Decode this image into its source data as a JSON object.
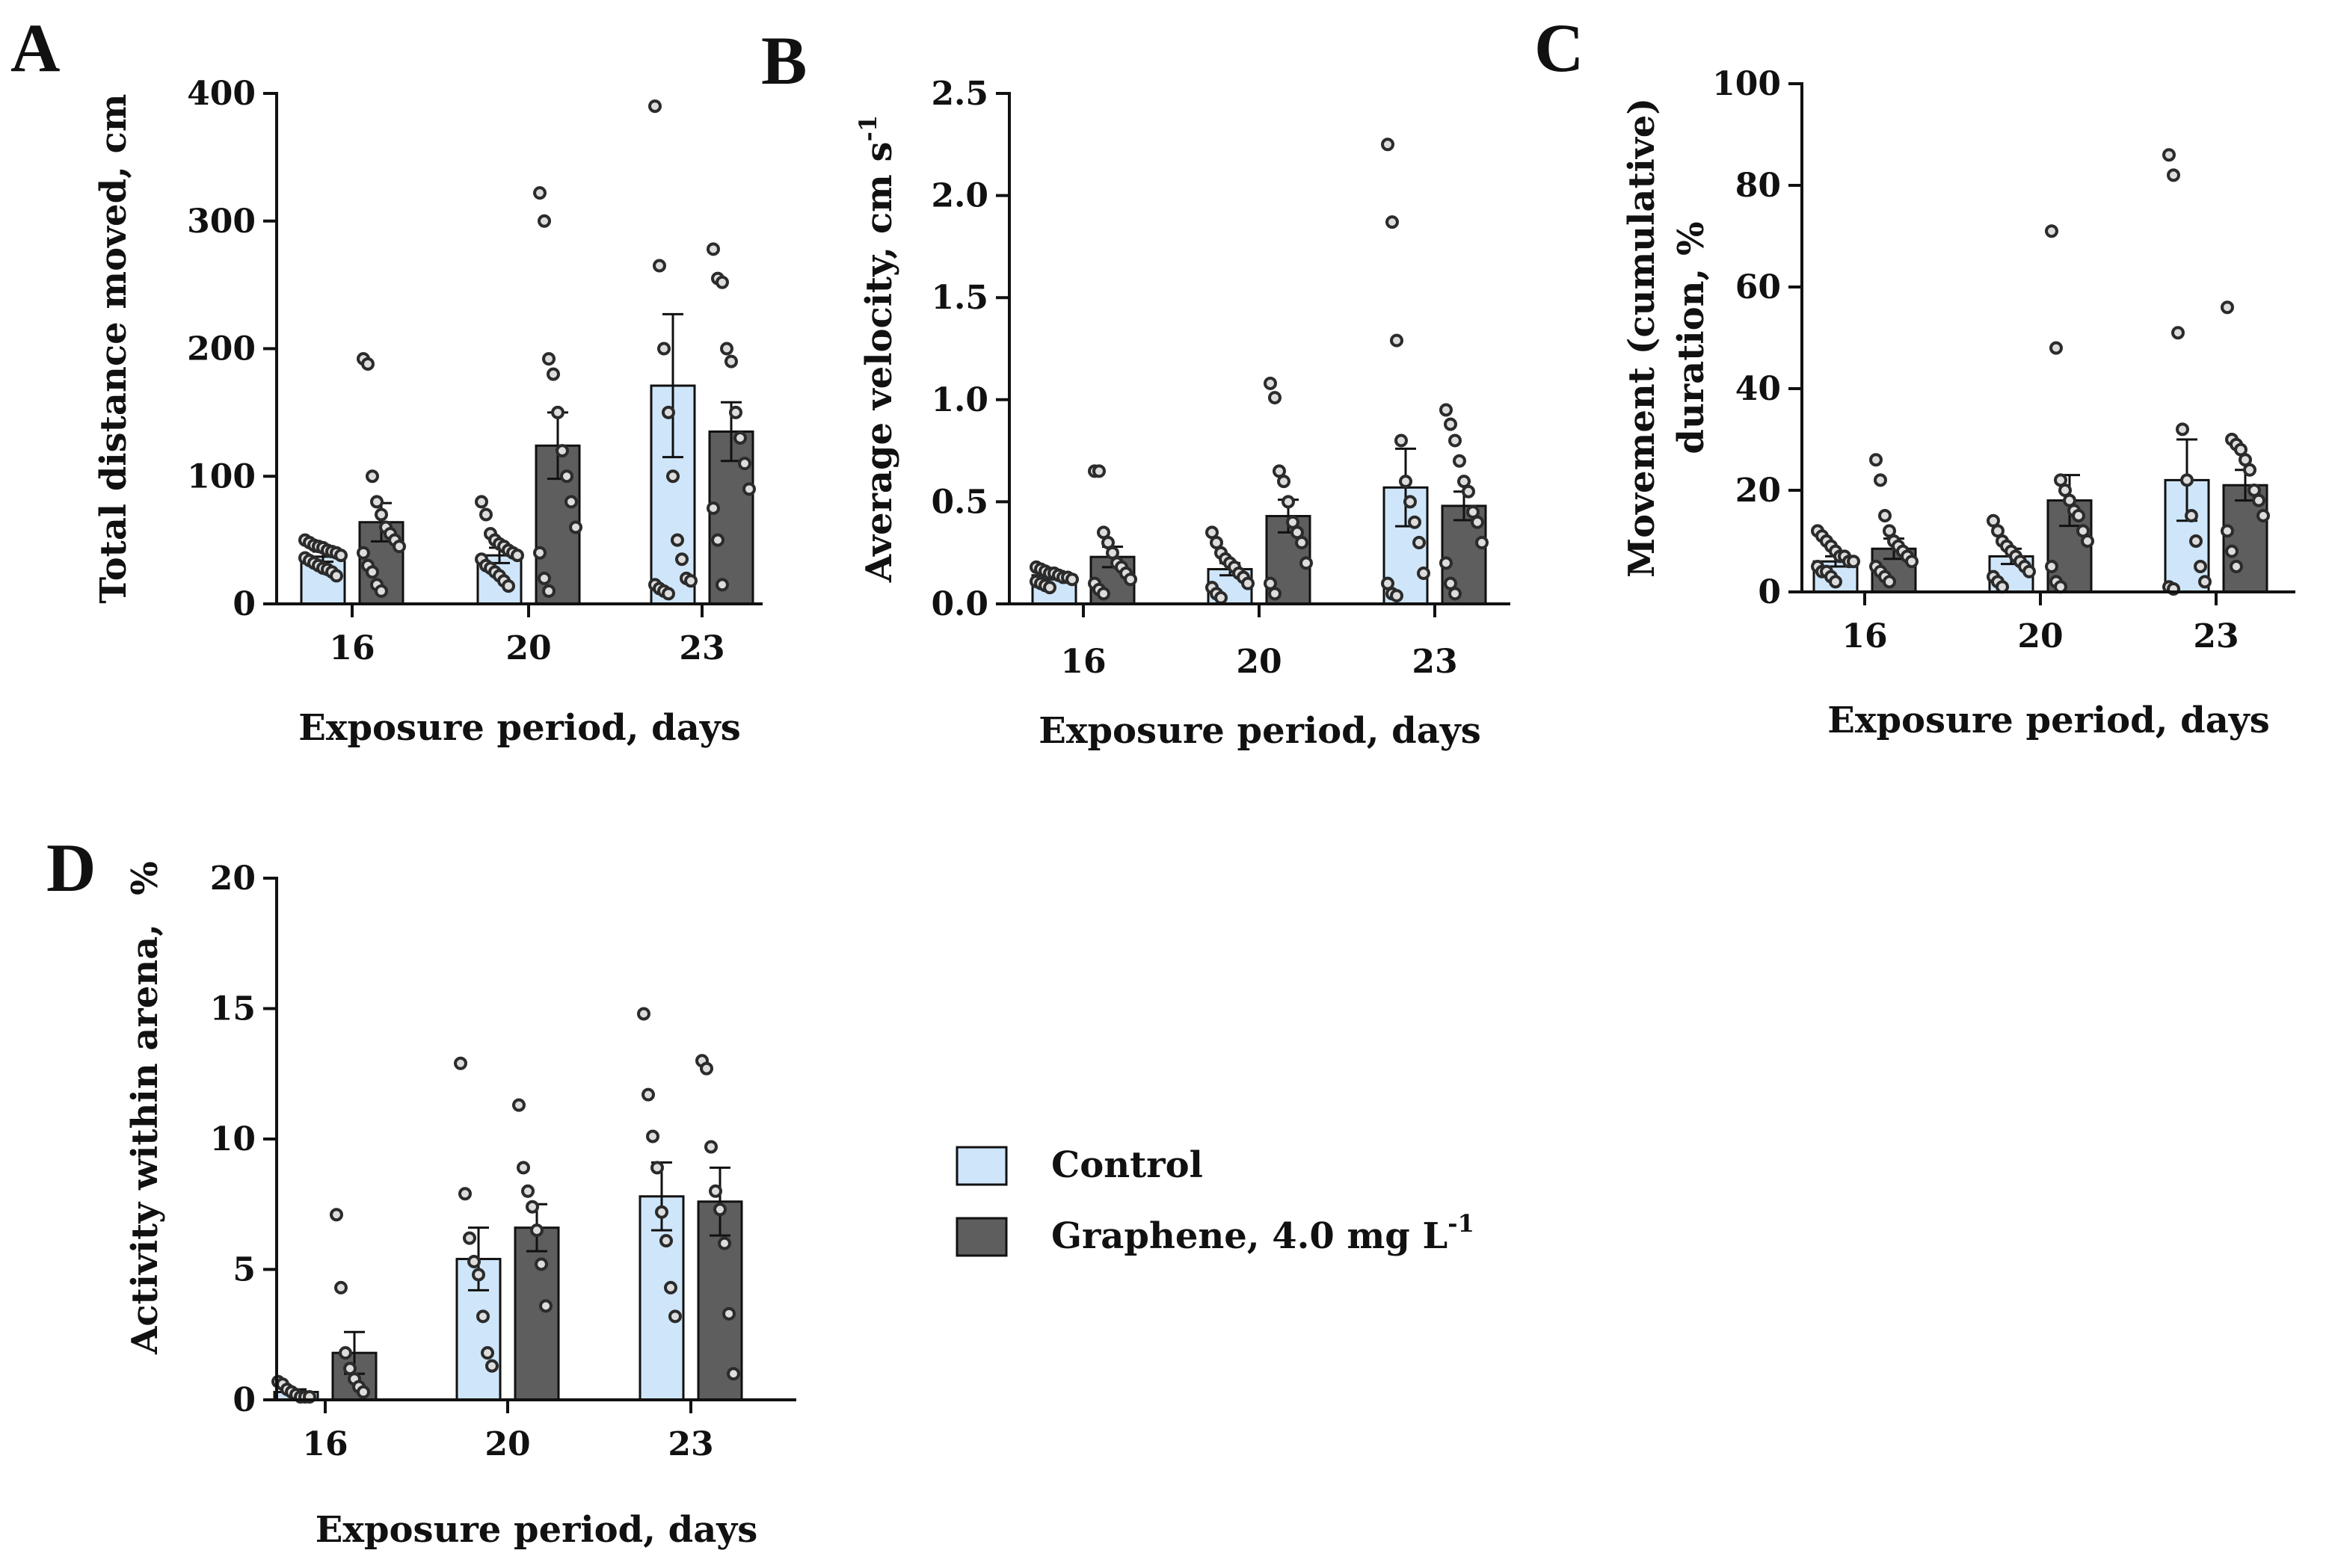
{
  "colors": {
    "control": "#cfe6fa",
    "graphene": "#5e5e5e",
    "axis": "#111111",
    "point": "#2b2b2b"
  },
  "legend": [
    {
      "key": "control",
      "label": "Control",
      "sup": ""
    },
    {
      "key": "graphene",
      "label": "Graphene, 4.0 mg  L",
      "sup": "-1"
    }
  ],
  "chart_data": [
    {
      "panel": "A",
      "type": "bar",
      "categories": [
        "16",
        "20",
        "23"
      ],
      "xlabel": "Exposure period, days",
      "ylabel": "Total distance moved, cm",
      "ylabel_sup": "",
      "ylim": [
        0,
        400
      ],
      "yticks": [
        "0",
        "100",
        "200",
        "300",
        "400"
      ],
      "series": [
        {
          "name": "Control",
          "key": "control",
          "values": [
            37,
            38,
            171
          ],
          "sem": [
            4,
            6,
            56
          ],
          "points": [
            [
              50,
              48,
              46,
              45,
              44,
              42,
              41,
              40,
              38,
              36,
              34,
              32,
              30,
              28,
              27,
              25,
              22
            ],
            [
              80,
              70,
              55,
              50,
              47,
              45,
              42,
              40,
              38,
              35,
              30,
              28,
              25,
              22,
              18,
              14
            ],
            [
              390,
              265,
              200,
              150,
              100,
              50,
              35,
              20,
              18,
              15,
              12,
              10,
              8
            ]
          ]
        },
        {
          "name": "Graphene, 4.0 mg L-1",
          "key": "graphene",
          "values": [
            64,
            124,
            135
          ],
          "sem": [
            15,
            26,
            23
          ],
          "points": [
            [
              192,
              188,
              100,
              80,
              70,
              60,
              55,
              50,
              45,
              40,
              30,
              25,
              15,
              10
            ],
            [
              322,
              300,
              192,
              180,
              150,
              120,
              100,
              80,
              60,
              40,
              20,
              10
            ],
            [
              278,
              255,
              252,
              200,
              190,
              150,
              130,
              110,
              90,
              75,
              50,
              15
            ]
          ]
        }
      ]
    },
    {
      "panel": "B",
      "type": "bar",
      "categories": [
        "16",
        "20",
        "23"
      ],
      "xlabel": "Exposure period, days",
      "ylabel": "Average velocity, cm s",
      "ylabel_sup": "-1",
      "ylim": [
        0,
        2.5
      ],
      "yticks": [
        "0.0",
        "0.5",
        "1.0",
        "1.5",
        "2.0",
        "2.5"
      ],
      "series": [
        {
          "name": "Control",
          "key": "control",
          "values": [
            0.14,
            0.17,
            0.57
          ],
          "sem": [
            0.02,
            0.03,
            0.19
          ],
          "points": [
            [
              0.18,
              0.17,
              0.16,
              0.15,
              0.15,
              0.14,
              0.13,
              0.13,
              0.12,
              0.11,
              0.1,
              0.09,
              0.08
            ],
            [
              0.35,
              0.3,
              0.25,
              0.22,
              0.2,
              0.18,
              0.15,
              0.13,
              0.1,
              0.08,
              0.05,
              0.03
            ],
            [
              2.25,
              1.87,
              1.29,
              0.8,
              0.6,
              0.5,
              0.4,
              0.3,
              0.15,
              0.1,
              0.05,
              0.04
            ]
          ]
        },
        {
          "name": "Graphene, 4.0 mg L-1",
          "key": "graphene",
          "values": [
            0.23,
            0.43,
            0.48
          ],
          "sem": [
            0.05,
            0.08,
            0.07
          ],
          "points": [
            [
              0.65,
              0.65,
              0.35,
              0.3,
              0.25,
              0.2,
              0.18,
              0.15,
              0.12,
              0.1,
              0.07,
              0.05
            ],
            [
              1.08,
              1.01,
              0.65,
              0.6,
              0.5,
              0.4,
              0.35,
              0.3,
              0.2,
              0.1,
              0.05
            ],
            [
              0.95,
              0.88,
              0.8,
              0.7,
              0.6,
              0.55,
              0.45,
              0.4,
              0.3,
              0.2,
              0.1,
              0.05
            ]
          ]
        }
      ]
    },
    {
      "panel": "C",
      "type": "bar",
      "categories": [
        "16",
        "20",
        "23"
      ],
      "xlabel": "Exposure period, days",
      "ylabel": "Movement (cumulative)",
      "ylabel2": "duration, %",
      "ylabel_sup": "",
      "ylim": [
        0,
        100
      ],
      "yticks": [
        "0",
        "20",
        "40",
        "60",
        "80",
        "100"
      ],
      "series": [
        {
          "name": "Control",
          "key": "control",
          "values": [
            6,
            7,
            22
          ],
          "sem": [
            1,
            1.5,
            8
          ],
          "points": [
            [
              12,
              11,
              10,
              9,
              8,
              7,
              7,
              6,
              6,
              5,
              4,
              4,
              3,
              2
            ],
            [
              14,
              12,
              10,
              9,
              8,
              7,
              6,
              5,
              4,
              3,
              2,
              1
            ],
            [
              86,
              82,
              51,
              32,
              22,
              15,
              10,
              5,
              2,
              1,
              0.5
            ]
          ]
        },
        {
          "name": "Graphene, 4.0 mg L-1",
          "key": "graphene",
          "values": [
            8.5,
            18,
            21
          ],
          "sem": [
            2,
            5,
            3
          ],
          "points": [
            [
              26,
              22,
              15,
              12,
              10,
              9,
              8,
              7,
              6,
              5,
              4,
              3,
              2
            ],
            [
              71,
              48,
              22,
              20,
              18,
              16,
              15,
              12,
              10,
              5,
              2,
              1
            ],
            [
              56,
              30,
              29,
              28,
              26,
              24,
              20,
              18,
              15,
              12,
              8,
              5
            ]
          ]
        }
      ]
    },
    {
      "panel": "D",
      "type": "bar",
      "categories": [
        "16",
        "20",
        "23"
      ],
      "xlabel": "Exposure period, days",
      "ylabel": "Activity within arena,",
      "ylabel2": "%",
      "ylabel_sup": "",
      "ylim": [
        0,
        20
      ],
      "yticks": [
        "0",
        "5",
        "10",
        "15",
        "20"
      ],
      "series": [
        {
          "name": "Control",
          "key": "control",
          "values": [
            0.3,
            5.4,
            7.8
          ],
          "sem": [
            0.1,
            1.2,
            1.3
          ],
          "points": [
            [
              0.7,
              0.6,
              0.4,
              0.3,
              0.2,
              0.1,
              0.1,
              0.05
            ],
            [
              12.9,
              7.9,
              6.2,
              5.3,
              4.8,
              3.2,
              1.8,
              1.3
            ],
            [
              14.8,
              11.7,
              10.1,
              8.9,
              7.2,
              6.1,
              4.3,
              3.2
            ]
          ]
        },
        {
          "name": "Graphene, 4.0 mg L-1",
          "key": "graphene",
          "values": [
            1.8,
            6.6,
            7.6
          ],
          "sem": [
            0.8,
            0.9,
            1.3
          ],
          "points": [
            [
              7.1,
              4.3,
              1.8,
              1.2,
              0.8,
              0.5,
              0.3
            ],
            [
              11.3,
              8.9,
              8.0,
              7.4,
              6.5,
              5.2,
              3.6
            ],
            [
              13.0,
              12.7,
              9.7,
              8.0,
              7.3,
              6.0,
              3.3,
              1.0
            ]
          ]
        }
      ]
    }
  ]
}
